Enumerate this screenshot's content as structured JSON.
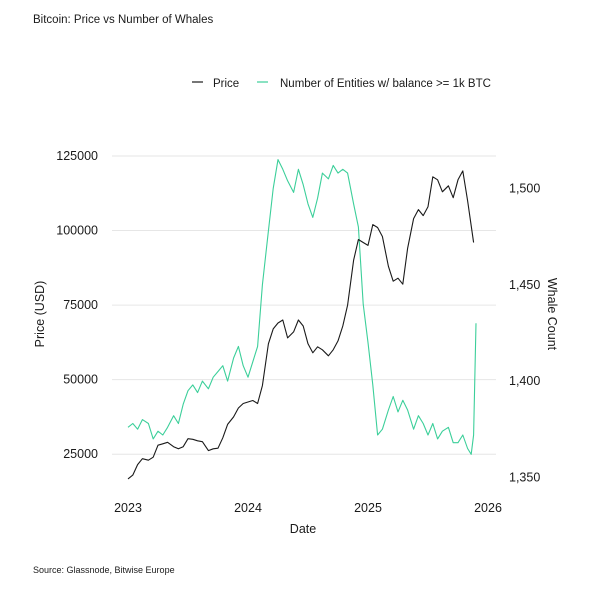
{
  "title": "Bitcoin: Price vs Number of Whales",
  "source": "Source: Glassnode, Bitwise Europe",
  "colors": {
    "price": "#1a1a1a",
    "whales": "#3ccf9a",
    "grid": "#e6e6e6"
  },
  "chart_data": {
    "type": "line",
    "xlabel": "Date",
    "ylabel_left": "Price (USD)",
    "ylabel_right": "Whale Count",
    "x_ticks": [
      "2023",
      "2024",
      "2025",
      "2026"
    ],
    "y_left_ticks": [
      "25000",
      "50000",
      "75000",
      "100000",
      "125000"
    ],
    "y_right_ticks": [
      "1,350",
      "1,400",
      "1,450",
      "1,500"
    ],
    "x_range": [
      "2023-01",
      "2026-01"
    ],
    "y_left_range": [
      14000,
      127000
    ],
    "y_right_range": [
      1345,
      1520
    ],
    "grid": "horizontal",
    "legend_position": "top-center",
    "legend": [
      "Price",
      "Number of Entities w/ balance >= 1k BTC"
    ],
    "series": [
      {
        "name": "Price",
        "axis": "left",
        "x": [
          2023.0,
          2023.04,
          2023.08,
          2023.12,
          2023.17,
          2023.21,
          2023.25,
          2023.29,
          2023.33,
          2023.38,
          2023.42,
          2023.46,
          2023.5,
          2023.54,
          2023.58,
          2023.62,
          2023.67,
          2023.71,
          2023.75,
          2023.79,
          2023.83,
          2023.88,
          2023.92,
          2023.96,
          2024.0,
          2024.04,
          2024.08,
          2024.12,
          2024.17,
          2024.21,
          2024.25,
          2024.29,
          2024.33,
          2024.38,
          2024.42,
          2024.46,
          2024.5,
          2024.54,
          2024.58,
          2024.62,
          2024.67,
          2024.71,
          2024.75,
          2024.79,
          2024.83,
          2024.88,
          2024.92,
          2024.96,
          2025.0,
          2025.04,
          2025.08,
          2025.12,
          2025.17,
          2025.21,
          2025.25,
          2025.29,
          2025.33,
          2025.38,
          2025.42,
          2025.46,
          2025.5,
          2025.54,
          2025.58,
          2025.62,
          2025.67,
          2025.71,
          2025.75,
          2025.79,
          2025.83,
          2025.88
        ],
        "values": [
          16700,
          18000,
          21500,
          23500,
          23000,
          24000,
          28000,
          28500,
          29000,
          27500,
          26800,
          27500,
          30200,
          30000,
          29500,
          29200,
          26200,
          26800,
          27000,
          30500,
          35000,
          37500,
          40500,
          42000,
          42500,
          43000,
          42000,
          48000,
          62000,
          67000,
          69000,
          70000,
          64000,
          66000,
          70000,
          68000,
          62000,
          59000,
          61000,
          60000,
          58000,
          60000,
          63000,
          68000,
          75000,
          90000,
          97000,
          96000,
          95000,
          102000,
          101000,
          98000,
          88000,
          83000,
          84000,
          82000,
          94000,
          104000,
          107000,
          105000,
          108000,
          118000,
          117000,
          113000,
          115000,
          111000,
          117000,
          120000,
          110000,
          96000
        ]
      },
      {
        "name": "Number of Entities w/ balance >= 1k BTC",
        "axis": "right",
        "x": [
          2023.0,
          2023.04,
          2023.08,
          2023.12,
          2023.17,
          2023.21,
          2023.25,
          2023.29,
          2023.33,
          2023.38,
          2023.42,
          2023.46,
          2023.5,
          2023.54,
          2023.58,
          2023.62,
          2023.67,
          2023.71,
          2023.75,
          2023.79,
          2023.83,
          2023.88,
          2023.92,
          2023.96,
          2024.0,
          2024.04,
          2024.08,
          2024.12,
          2024.17,
          2024.21,
          2024.25,
          2024.29,
          2024.33,
          2024.38,
          2024.42,
          2024.46,
          2024.5,
          2024.54,
          2024.58,
          2024.62,
          2024.67,
          2024.71,
          2024.75,
          2024.79,
          2024.83,
          2024.88,
          2024.92,
          2024.96,
          2025.0,
          2025.04,
          2025.08,
          2025.12,
          2025.17,
          2025.21,
          2025.25,
          2025.29,
          2025.33,
          2025.38,
          2025.42,
          2025.46,
          2025.5,
          2025.54,
          2025.58,
          2025.62,
          2025.67,
          2025.71,
          2025.75,
          2025.79,
          2025.83,
          2025.86,
          2025.88,
          2025.9
        ],
        "values": [
          1376,
          1378,
          1375,
          1380,
          1378,
          1370,
          1374,
          1372,
          1376,
          1382,
          1378,
          1388,
          1395,
          1398,
          1394,
          1400,
          1396,
          1402,
          1405,
          1408,
          1400,
          1412,
          1418,
          1408,
          1402,
          1410,
          1418,
          1450,
          1478,
          1500,
          1515,
          1510,
          1504,
          1498,
          1510,
          1502,
          1492,
          1485,
          1495,
          1508,
          1505,
          1512,
          1508,
          1510,
          1508,
          1492,
          1480,
          1440,
          1420,
          1398,
          1372,
          1375,
          1385,
          1392,
          1384,
          1390,
          1385,
          1375,
          1382,
          1378,
          1372,
          1378,
          1370,
          1374,
          1376,
          1368,
          1368,
          1372,
          1365,
          1362,
          1372,
          1430
        ]
      }
    ]
  }
}
